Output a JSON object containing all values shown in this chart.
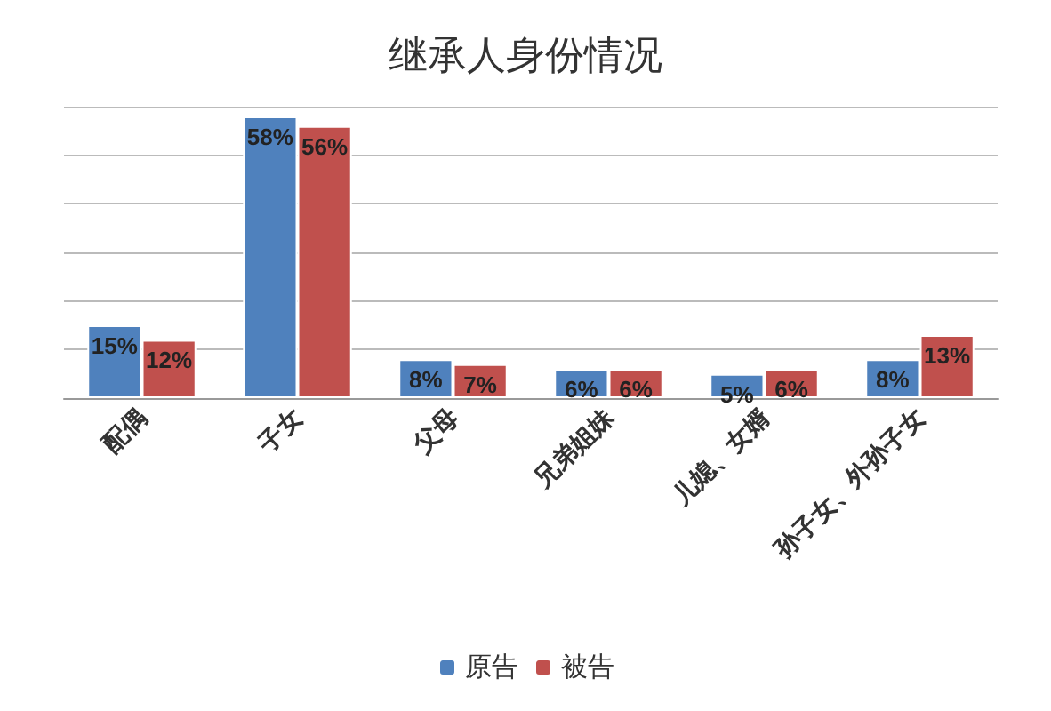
{
  "chart_data": {
    "type": "bar",
    "title": "继承人身份情况",
    "categories": [
      "配偶",
      "子女",
      "父母",
      "兄弟姐妹",
      "儿媳、女婿",
      "孙子女、外孙子女"
    ],
    "series": [
      {
        "name": "原告",
        "color": "#4f81bd",
        "values": [
          15,
          58,
          8,
          6,
          5,
          8
        ],
        "value_labels": [
          "15%",
          "58%",
          "8%",
          "6%",
          "5%",
          "8%"
        ]
      },
      {
        "name": "被告",
        "color": "#c0504d",
        "values": [
          12,
          56,
          7,
          6,
          6,
          13
        ],
        "value_labels": [
          "12%",
          "56%",
          "7%",
          "6%",
          "6%",
          "13%"
        ]
      }
    ],
    "tick_labels": "x",
    "grid": "y",
    "legend": "bottom"
  }
}
